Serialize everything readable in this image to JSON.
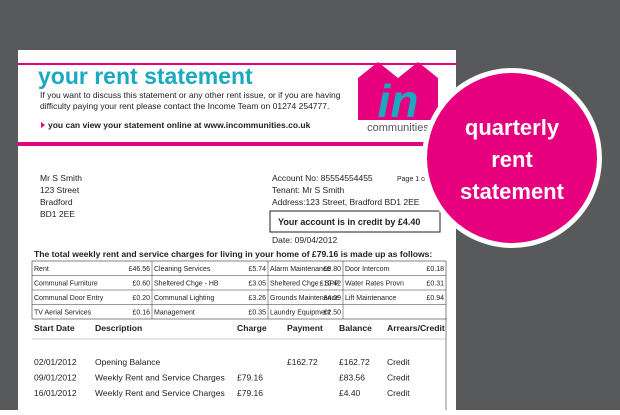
{
  "header": {
    "title": "your rent statement",
    "intro": [
      "If you want to discuss this statement or any other rent issue, or if you are having",
      "difficulty paying your rent please contact the Income Team on 01274 254777."
    ],
    "online": "you can view your statement online at www.incommunities.co.uk",
    "logo_mark": "in",
    "logo_text": "communities"
  },
  "address": [
    "Mr S Smith",
    "123 Street",
    "Bradford",
    "BD1 2EE"
  ],
  "account": {
    "number": "Account No: 85554554455",
    "tenant": "Tenant: Mr S Smith",
    "address": "Address:123 Street, Bradford BD1 2EE",
    "page": "Page 1 o",
    "credit": "Your account is in credit by £4.40",
    "date": "Date: 09/04/2012"
  },
  "charges": {
    "caption": "The total weekly rent and service charges for living in your home of £79.16 is made up as follows:",
    "rows": [
      [
        [
          "Rent",
          "£46.56"
        ],
        [
          "Cleaning Services",
          "£5.74"
        ],
        [
          "Alarm Maintenance",
          "£0.80"
        ],
        [
          "Door Intercom",
          "£0.18"
        ]
      ],
      [
        [
          "Communal Furniture",
          "£0.60"
        ],
        [
          "Sheltered Chge - HB",
          "£3.05"
        ],
        [
          "Sheltered Chge - SPP",
          "£10.42"
        ],
        [
          "Water Rates Provn",
          "£0.31"
        ]
      ],
      [
        [
          "Communal Door Entry",
          "£0.20"
        ],
        [
          "Communal Lighting",
          "£3.26"
        ],
        [
          "Grounds Maintenance",
          "£4.09"
        ],
        [
          "Lift Maintenance",
          "£0.94"
        ]
      ],
      [
        [
          "TV Aerial Services",
          "£0.16"
        ],
        [
          "Management",
          "£0.35"
        ],
        [
          "Laundry Equipment",
          "£2.50"
        ]
      ]
    ]
  },
  "statement": {
    "columns": [
      "Start Date",
      "Description",
      "Charge",
      "Payment",
      "Balance",
      "Arrears/Credit"
    ],
    "rows": [
      [
        "02/01/2012",
        "Opening Balance",
        "",
        "£162.72",
        "£162.72",
        "Credit"
      ],
      [
        "09/01/2012",
        "Weekly Rent and Service Charges",
        "£79.16",
        "",
        "£83.56",
        "Credit"
      ],
      [
        "16/01/2012",
        "Weekly Rent and Service Charges",
        "£79.16",
        "",
        "£4.40",
        "Credit"
      ]
    ]
  },
  "badge": [
    "quarterly",
    "rent",
    "statement"
  ]
}
